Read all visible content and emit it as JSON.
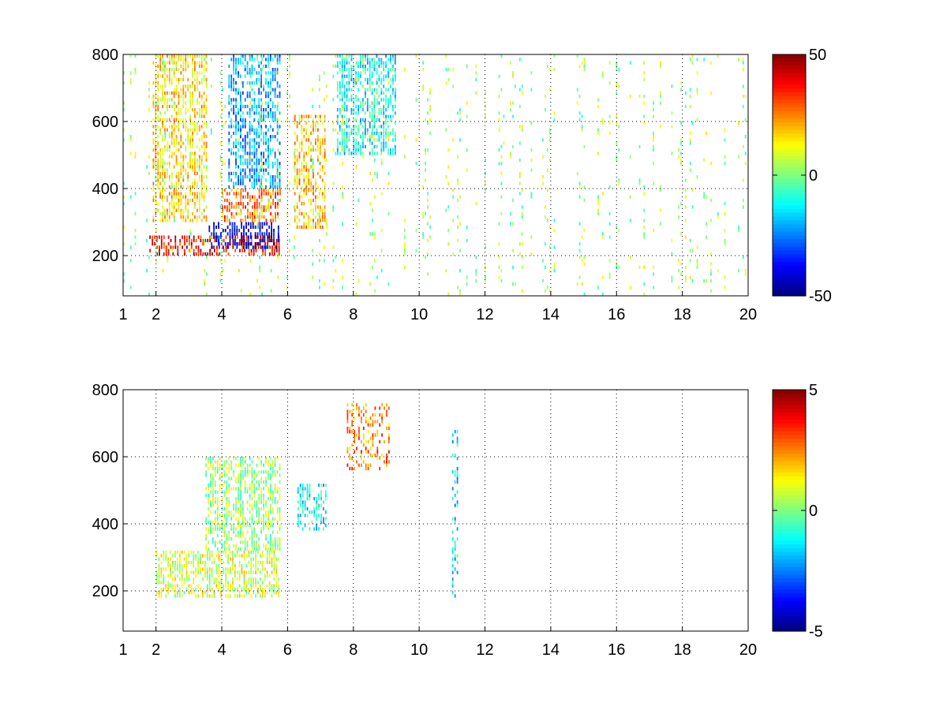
{
  "chart_data": [
    {
      "type": "heatmap",
      "colormap": "jet",
      "xlim": [
        1,
        20
      ],
      "ylim": [
        80,
        800
      ],
      "xticks": [
        1,
        2,
        4,
        6,
        8,
        10,
        12,
        14,
        16,
        18,
        20
      ],
      "yticks": [
        200,
        400,
        600,
        800
      ],
      "grid": true,
      "colorbar": {
        "min": -50,
        "max": 50,
        "ticks": [
          50,
          0,
          -50
        ]
      },
      "features": [
        {
          "kind": "band",
          "x_range": [
            1.8,
            5.8
          ],
          "y_range": [
            200,
            260
          ],
          "value": 38,
          "description_free": true
        },
        {
          "kind": "band",
          "x_range": [
            3.6,
            5.8
          ],
          "y_range": [
            220,
            300
          ],
          "value": -42
        },
        {
          "kind": "band",
          "x_range": [
            4.0,
            5.8
          ],
          "y_range": [
            300,
            400
          ],
          "value": 28
        },
        {
          "kind": "band",
          "x_range": [
            4.2,
            5.8
          ],
          "y_range": [
            400,
            800
          ],
          "value": -22
        },
        {
          "kind": "band",
          "x_range": [
            1.9,
            3.6
          ],
          "y_range": [
            300,
            800
          ],
          "value": 15
        },
        {
          "kind": "band",
          "x_range": [
            6.2,
            7.2
          ],
          "y_range": [
            280,
            620
          ],
          "value": 18
        },
        {
          "kind": "band",
          "x_range": [
            7.5,
            9.3
          ],
          "y_range": [
            500,
            800
          ],
          "value": -12
        },
        {
          "kind": "sparse",
          "x_range": [
            1,
            20
          ],
          "y_range": [
            80,
            800
          ],
          "value": 3
        }
      ]
    },
    {
      "type": "heatmap",
      "colormap": "jet",
      "xlim": [
        1,
        20
      ],
      "ylim": [
        80,
        800
      ],
      "xticks": [
        1,
        2,
        4,
        6,
        8,
        10,
        12,
        14,
        16,
        18,
        20
      ],
      "yticks": [
        200,
        400,
        600,
        800
      ],
      "grid": true,
      "colorbar": {
        "min": -5,
        "max": 5,
        "ticks": [
          5,
          0,
          -5
        ]
      },
      "features": [
        {
          "kind": "band",
          "x_range": [
            2.0,
            5.8
          ],
          "y_range": [
            180,
            320
          ],
          "value": 0.8
        },
        {
          "kind": "band",
          "x_range": [
            3.5,
            5.8
          ],
          "y_range": [
            320,
            600
          ],
          "value": 0.3
        },
        {
          "kind": "band",
          "x_range": [
            6.3,
            7.2
          ],
          "y_range": [
            380,
            520
          ],
          "value": -1.2
        },
        {
          "kind": "spots",
          "x_range": [
            7.8,
            9.1
          ],
          "y_range": [
            560,
            760
          ],
          "value": 2.5
        },
        {
          "kind": "spots",
          "x_range": [
            11.0,
            11.2
          ],
          "y_range": [
            180,
            690
          ],
          "value": -1.5
        }
      ]
    }
  ]
}
